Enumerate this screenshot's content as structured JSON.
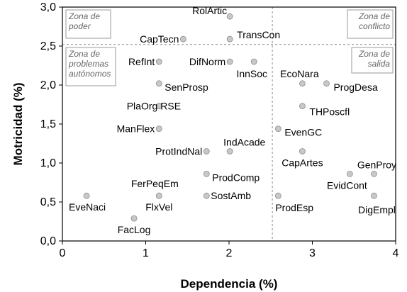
{
  "chart_data": {
    "type": "scatter",
    "xlabel": "Dependencia (%)",
    "ylabel": "Motricidad (%)",
    "xlim": [
      0,
      4
    ],
    "ylim": [
      0,
      3
    ],
    "x_ticks": [
      "0",
      "1",
      "2",
      "3",
      "4"
    ],
    "y_ticks": [
      "0,0",
      "0,5",
      "1,0",
      "1,5",
      "2,0",
      "2,5",
      "3,0"
    ],
    "divider_x": 2.52,
    "divider_y": 2.52,
    "grid": false,
    "quadrants": [
      {
        "id": "poder",
        "lines": [
          "Zona de",
          "poder"
        ]
      },
      {
        "id": "conflicto",
        "lines": [
          "Zona de",
          "conflicto"
        ]
      },
      {
        "id": "autonomos",
        "lines": [
          "Zona de",
          "problemas",
          "autónomos"
        ]
      },
      {
        "id": "salida",
        "lines": [
          "Zona de",
          "salida"
        ]
      }
    ],
    "points": [
      {
        "label": "RolArtic",
        "x": 2.01,
        "y": 2.88
      },
      {
        "label": "CapTecn",
        "x": 1.45,
        "y": 2.59
      },
      {
        "label": "TransCon",
        "x": 2.01,
        "y": 2.59
      },
      {
        "label": "RefInt",
        "x": 1.16,
        "y": 2.3
      },
      {
        "label": "DifNorm",
        "x": 2.01,
        "y": 2.3
      },
      {
        "label": "InnSoc",
        "x": 2.3,
        "y": 2.3
      },
      {
        "label": "EcoNara",
        "x": 2.88,
        "y": 2.02
      },
      {
        "label": "ProgDesa",
        "x": 3.17,
        "y": 2.02
      },
      {
        "label": "SenProsp",
        "x": 1.16,
        "y": 2.02
      },
      {
        "label": "PlaOrg",
        "x": 1.16,
        "y": 1.73
      },
      {
        "label": "RSE",
        "x": 1.16,
        "y": 1.73
      },
      {
        "label": "THPoscfl",
        "x": 2.88,
        "y": 1.73
      },
      {
        "label": "ManFlex",
        "x": 1.16,
        "y": 1.44
      },
      {
        "label": "EvenGC",
        "x": 2.59,
        "y": 1.44
      },
      {
        "label": "ProtIndNal",
        "x": 1.73,
        "y": 1.15
      },
      {
        "label": "IndAcade",
        "x": 2.01,
        "y": 1.15
      },
      {
        "label": "CapArtes",
        "x": 2.88,
        "y": 1.15
      },
      {
        "label": "ProdComp",
        "x": 1.73,
        "y": 0.86
      },
      {
        "label": "GenProy",
        "x": 3.74,
        "y": 0.86
      },
      {
        "label": "EvidCont",
        "x": 3.45,
        "y": 0.86
      },
      {
        "label": "FerPeqEm",
        "x": 1.16,
        "y": 0.58
      },
      {
        "label": "FlxVel",
        "x": 1.16,
        "y": 0.58
      },
      {
        "label": "SostAmb",
        "x": 1.73,
        "y": 0.58
      },
      {
        "label": "EveNaci",
        "x": 0.29,
        "y": 0.58
      },
      {
        "label": "ProdEsp",
        "x": 2.59,
        "y": 0.58
      },
      {
        "label": "DigEmpl",
        "x": 3.74,
        "y": 0.58
      },
      {
        "label": "FacLog",
        "x": 0.86,
        "y": 0.29
      }
    ]
  }
}
